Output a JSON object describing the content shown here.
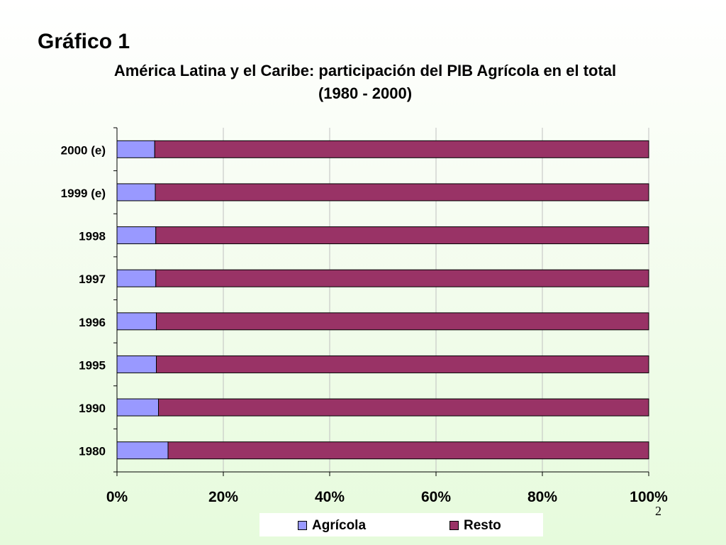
{
  "slide": {
    "title": "Gráfico 1",
    "page_number": "2"
  },
  "chart_data": {
    "type": "bar",
    "orientation": "horizontal",
    "stacked": "percent",
    "title": "América Latina y el Caribe: participación del PIB Agrícola en el total (1980 - 2000)",
    "categories": [
      "1980",
      "1990",
      "1995",
      "1996",
      "1997",
      "1998",
      "1999 (e)",
      "2000 (e)"
    ],
    "series": [
      {
        "name": "Agrícola",
        "color": "#9999ff",
        "values": [
          9.6,
          7.8,
          7.4,
          7.4,
          7.3,
          7.3,
          7.2,
          7.1
        ]
      },
      {
        "name": "Resto",
        "color": "#993366",
        "values": [
          90.4,
          92.2,
          92.6,
          92.6,
          92.7,
          92.7,
          92.8,
          92.9
        ]
      }
    ],
    "xaxis": {
      "ticks": [
        "0%",
        "20%",
        "40%",
        "60%",
        "80%",
        "100%"
      ],
      "range": [
        0,
        100
      ]
    },
    "grid": "vertical",
    "legend_position": "bottom"
  }
}
